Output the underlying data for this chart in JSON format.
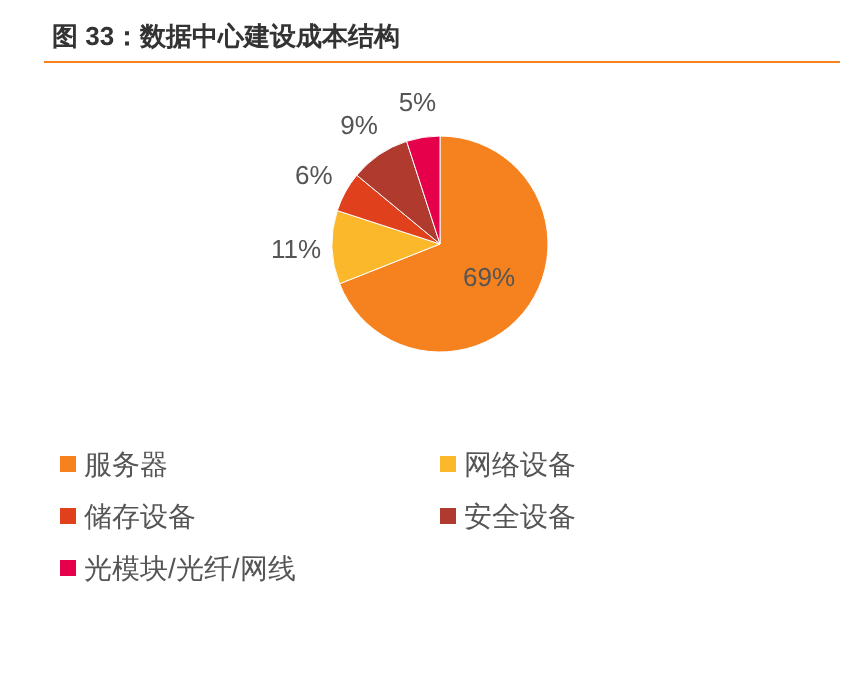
{
  "chart_data": {
    "type": "pie",
    "title": "图 33：数据中心建设成本结构",
    "categories": [
      "服务器",
      "网络设备",
      "储存设备",
      "安全设备",
      "光模块/光纤/网线"
    ],
    "values": [
      69,
      11,
      6,
      9,
      5
    ],
    "colors": [
      "#f5821f",
      "#fbb82b",
      "#e0401c",
      "#b03a2e",
      "#e6004c"
    ],
    "value_labels": [
      "69%",
      "11%",
      "6%",
      "9%",
      "5%"
    ],
    "legend": "bottom"
  }
}
